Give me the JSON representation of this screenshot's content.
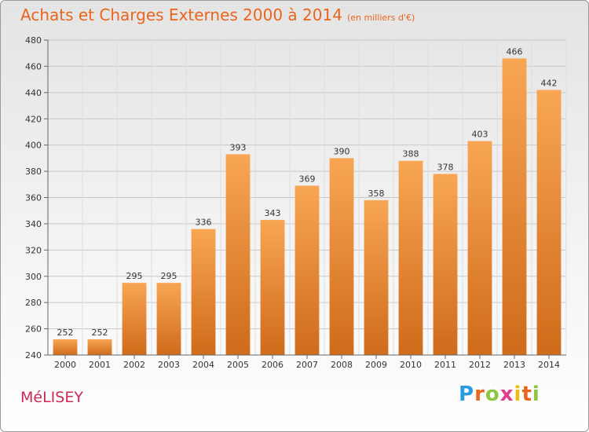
{
  "chart_data": {
    "type": "bar",
    "title": "Achats et Charges Externes 2000 à 2014",
    "subtitle": "(en milliers d'€)",
    "categories": [
      "2000",
      "2001",
      "2002",
      "2003",
      "2004",
      "2005",
      "2006",
      "2007",
      "2008",
      "2009",
      "2010",
      "2011",
      "2012",
      "2013",
      "2014"
    ],
    "values": [
      252,
      252,
      295,
      295,
      336,
      393,
      343,
      369,
      390,
      358,
      388,
      378,
      403,
      466,
      442
    ],
    "ylim": [
      240,
      480
    ],
    "yticks": [
      240,
      260,
      280,
      300,
      320,
      340,
      360,
      380,
      400,
      420,
      440,
      460,
      480
    ],
    "grid": true,
    "bar_color": "#e07a25"
  },
  "footer": {
    "town": "MéLISEY",
    "logo_letters": [
      "P",
      "r",
      "o",
      "x",
      "i",
      "t",
      "i"
    ],
    "logo_colors": [
      "#2b9be0",
      "#e8651d",
      "#8dc63f",
      "#e03c8f",
      "#f2b90f",
      "#e8651d",
      "#8dc63f"
    ]
  }
}
